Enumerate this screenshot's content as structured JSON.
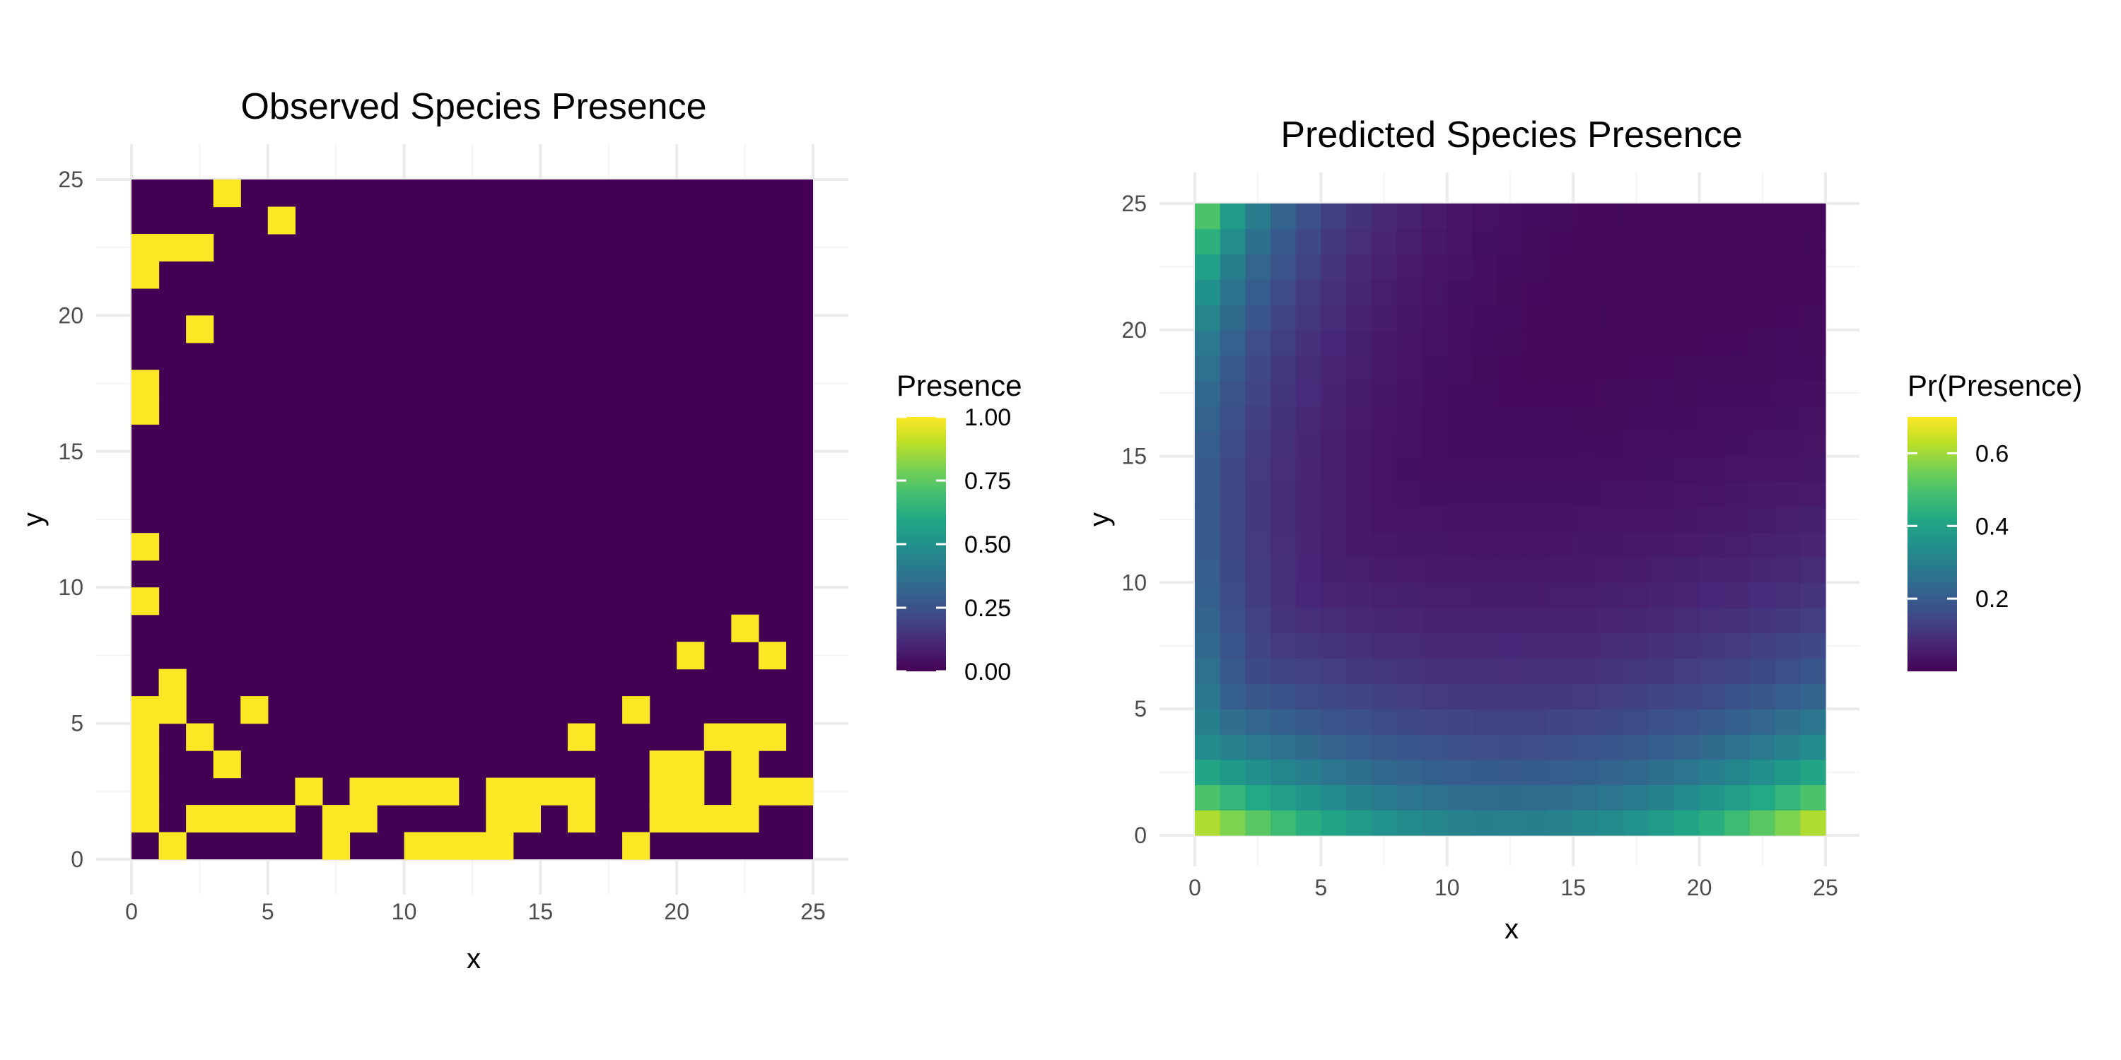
{
  "chart_data": [
    {
      "type": "heatmap",
      "title": "Observed Species Presence",
      "xlabel": "x",
      "ylabel": "y",
      "xlim": [
        0,
        25
      ],
      "ylim": [
        0,
        25
      ],
      "xticks": [
        "0",
        "5",
        "10",
        "15",
        "20",
        "25"
      ],
      "yticks": [
        "0",
        "5",
        "10",
        "15",
        "20",
        "25"
      ],
      "grid": true,
      "colormap": "viridis",
      "low_color": "#440154",
      "high_color": "#fde725",
      "legend": {
        "title": "Presence",
        "placement": "right",
        "range": [
          0,
          1
        ],
        "ticks": [
          0,
          0.25,
          0.5,
          0.75,
          1
        ],
        "tick_labels": [
          "0.00",
          "0.25",
          "0.50",
          "0.75",
          "1.00"
        ]
      },
      "cells": {
        "description": "presence = 1 at these [x, y] cell centers, all others 0",
        "present": [
          [
            3.5,
            24.5
          ],
          [
            5.5,
            23.5
          ],
          [
            0.5,
            22.5
          ],
          [
            1.5,
            22.5
          ],
          [
            2.5,
            22.5
          ],
          [
            0.5,
            21.5
          ],
          [
            2.5,
            19.5
          ],
          [
            0.5,
            17.5
          ],
          [
            0.5,
            16.5
          ],
          [
            0.5,
            11.5
          ],
          [
            0.5,
            9.5
          ],
          [
            22.5,
            8.5
          ],
          [
            20.5,
            7.5
          ],
          [
            23.5,
            7.5
          ],
          [
            1.5,
            6.5
          ],
          [
            0.5,
            5.5
          ],
          [
            1.5,
            5.5
          ],
          [
            4.5,
            5.5
          ],
          [
            18.5,
            5.5
          ],
          [
            0.5,
            4.5
          ],
          [
            2.5,
            4.5
          ],
          [
            16.5,
            4.5
          ],
          [
            21.5,
            4.5
          ],
          [
            22.5,
            4.5
          ],
          [
            23.5,
            4.5
          ],
          [
            0.5,
            3.5
          ],
          [
            3.5,
            3.5
          ],
          [
            19.5,
            3.5
          ],
          [
            20.5,
            3.5
          ],
          [
            22.5,
            3.5
          ],
          [
            0.5,
            2.5
          ],
          [
            6.5,
            2.5
          ],
          [
            8.5,
            2.5
          ],
          [
            9.5,
            2.5
          ],
          [
            10.5,
            2.5
          ],
          [
            11.5,
            2.5
          ],
          [
            13.5,
            2.5
          ],
          [
            14.5,
            2.5
          ],
          [
            15.5,
            2.5
          ],
          [
            16.5,
            2.5
          ],
          [
            19.5,
            2.5
          ],
          [
            20.5,
            2.5
          ],
          [
            22.5,
            2.5
          ],
          [
            23.5,
            2.5
          ],
          [
            24.5,
            2.5
          ],
          [
            0.5,
            1.5
          ],
          [
            2.5,
            1.5
          ],
          [
            3.5,
            1.5
          ],
          [
            4.5,
            1.5
          ],
          [
            5.5,
            1.5
          ],
          [
            7.5,
            1.5
          ],
          [
            8.5,
            1.5
          ],
          [
            13.5,
            1.5
          ],
          [
            14.5,
            1.5
          ],
          [
            16.5,
            1.5
          ],
          [
            19.5,
            1.5
          ],
          [
            20.5,
            1.5
          ],
          [
            21.5,
            1.5
          ],
          [
            22.5,
            1.5
          ],
          [
            1.5,
            0.5
          ],
          [
            7.5,
            0.5
          ],
          [
            10.5,
            0.5
          ],
          [
            11.5,
            0.5
          ],
          [
            12.5,
            0.5
          ],
          [
            13.5,
            0.5
          ],
          [
            18.5,
            0.5
          ]
        ]
      }
    },
    {
      "type": "heatmap",
      "title": "Predicted Species Presence",
      "xlabel": "x",
      "ylabel": "y",
      "xlim": [
        0,
        25
      ],
      "ylim": [
        0,
        25
      ],
      "xticks": [
        "0",
        "5",
        "10",
        "15",
        "20",
        "25"
      ],
      "yticks": [
        "0",
        "5",
        "10",
        "15",
        "20",
        "25"
      ],
      "grid": true,
      "colormap": "viridis",
      "legend": {
        "title": "Pr(Presence)",
        "placement": "right",
        "range": [
          0,
          0.7
        ],
        "ticks": [
          0.2,
          0.4,
          0.6
        ],
        "tick_labels": [
          "0.2",
          "0.4",
          "0.6"
        ]
      },
      "surface": {
        "description": "smooth predicted probability, high along bottom and left edges, peak ~0.7 at corners (0,0) and (25,0), ~0.6 at (0,25), minimum ~0.01 in upper right",
        "corner_values": {
          "bottom_left": 0.7,
          "bottom_right": 0.7,
          "top_left": 0.6,
          "top_right": 0.01
        },
        "bottom_edge_center": 0.35,
        "left_edge_center": 0.15,
        "interior_min": 0.01
      }
    }
  ]
}
